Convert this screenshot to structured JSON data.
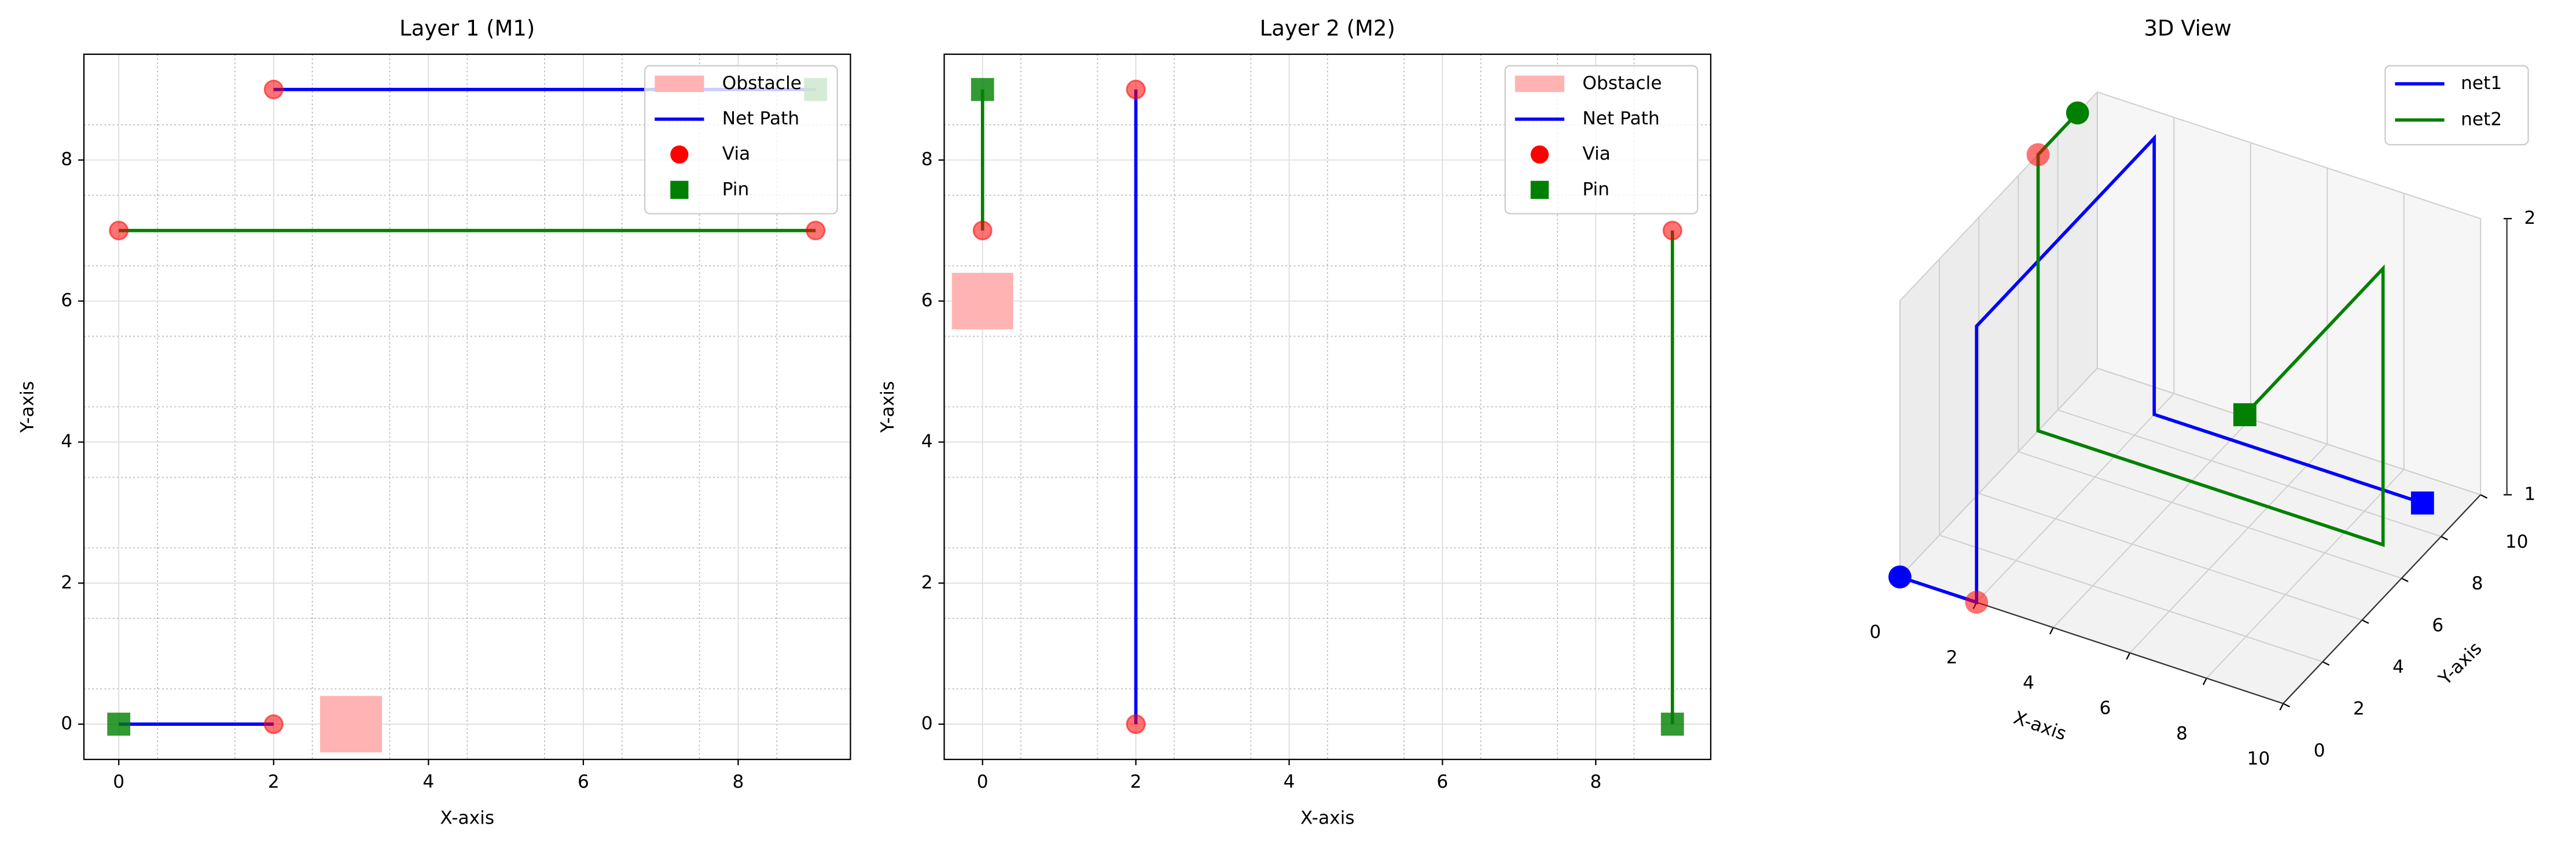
{
  "chart_data": [
    {
      "type": "line",
      "title": "Layer 1 (M1)",
      "xlabel": "X-axis",
      "ylabel": "Y-axis",
      "xlim": [
        -0.45,
        9.45
      ],
      "ylim": [
        -0.5,
        9.5
      ],
      "xticks": [
        0,
        2,
        4,
        6,
        8
      ],
      "yticks": [
        0,
        2,
        4,
        6,
        8
      ],
      "xminor": [
        0.5,
        1.5,
        2.5,
        3.5,
        4.5,
        5.5,
        6.5,
        7.5,
        8.5
      ],
      "yminor": [
        0.5,
        1.5,
        2.5,
        3.5,
        4.5,
        5.5,
        6.5,
        7.5,
        8.5
      ],
      "grid": true,
      "legend": "upper right",
      "legend_labels": [
        "Obstacle",
        "Net Path",
        "Via",
        "Pin"
      ],
      "obstacles": {
        "color": "#ffb3b3",
        "items": [
          {
            "x": [
              2.6,
              3.4
            ],
            "y": [
              -0.4,
              0.4
            ]
          }
        ]
      },
      "paths": [
        {
          "color": "#0000ff",
          "x": [
            0,
            2,
            null,
            2,
            9
          ],
          "y": [
            0,
            0,
            null,
            9,
            9
          ]
        },
        {
          "color": "#008000",
          "x": [
            0,
            9
          ],
          "y": [
            7,
            7
          ]
        }
      ],
      "vias": {
        "color": "#ff0000",
        "x": [
          2,
          2,
          0,
          9
        ],
        "y": [
          0,
          9,
          7,
          7
        ]
      },
      "pins": {
        "color": "#008000",
        "x": [
          0,
          9
        ],
        "y": [
          0,
          9
        ]
      }
    },
    {
      "type": "line",
      "title": "Layer 2 (M2)",
      "xlabel": "X-axis",
      "ylabel": "Y-axis",
      "xlim": [
        -0.5,
        9.5
      ],
      "ylim": [
        -0.5,
        9.5
      ],
      "xticks": [
        0,
        2,
        4,
        6,
        8
      ],
      "yticks": [
        0,
        2,
        4,
        6,
        8
      ],
      "xminor": [
        0.5,
        1.5,
        2.5,
        3.5,
        4.5,
        5.5,
        6.5,
        7.5,
        8.5
      ],
      "yminor": [
        0.5,
        1.5,
        2.5,
        3.5,
        4.5,
        5.5,
        6.5,
        7.5,
        8.5
      ],
      "grid": true,
      "legend": "upper right",
      "legend_labels": [
        "Obstacle",
        "Net Path",
        "Via",
        "Pin"
      ],
      "obstacles": {
        "color": "#ffb3b3",
        "items": [
          {
            "x": [
              -0.4,
              0.4
            ],
            "y": [
              5.6,
              6.4
            ]
          }
        ]
      },
      "paths": [
        {
          "color": "#0000ff",
          "x": [
            2,
            2
          ],
          "y": [
            0,
            9
          ]
        },
        {
          "color": "#008000",
          "x": [
            0,
            0,
            null,
            9,
            9
          ],
          "y": [
            9,
            7,
            null,
            7,
            0
          ]
        }
      ],
      "vias": {
        "color": "#ff0000",
        "x": [
          2,
          2,
          0,
          9
        ],
        "y": [
          0,
          9,
          7,
          7
        ]
      },
      "pins": {
        "color": "#008000",
        "x": [
          0,
          9
        ],
        "y": [
          9,
          0
        ]
      }
    },
    {
      "type": "line3d",
      "title": "3D View",
      "xlabel": "X-axis",
      "ylabel": "Y-axis",
      "xlim": [
        0,
        10
      ],
      "ylim": [
        0,
        10
      ],
      "zlim": [
        1,
        2
      ],
      "xticks": [
        0,
        2,
        4,
        6,
        8,
        10
      ],
      "yticks": [
        0,
        2,
        4,
        6,
        8,
        10
      ],
      "zticks": [
        1,
        2
      ],
      "grid": true,
      "legend": "upper right",
      "series": [
        {
          "name": "net1",
          "color": "#0000ff",
          "x": [
            0,
            2,
            2,
            2,
            2,
            9
          ],
          "y": [
            0,
            0,
            0,
            9,
            9,
            9
          ],
          "z": [
            1,
            1,
            2,
            2,
            1,
            1
          ]
        },
        {
          "name": "net2",
          "color": "#008000",
          "x": [
            0,
            0,
            0,
            9,
            9,
            9
          ],
          "y": [
            9,
            7,
            7,
            7,
            7,
            0
          ],
          "z": [
            2,
            2,
            1,
            1,
            2,
            2
          ]
        }
      ],
      "vias": {
        "color": "#ff0000",
        "x": [
          2,
          0
        ],
        "y": [
          0,
          7
        ],
        "z": [
          1,
          2
        ]
      }
    }
  ]
}
